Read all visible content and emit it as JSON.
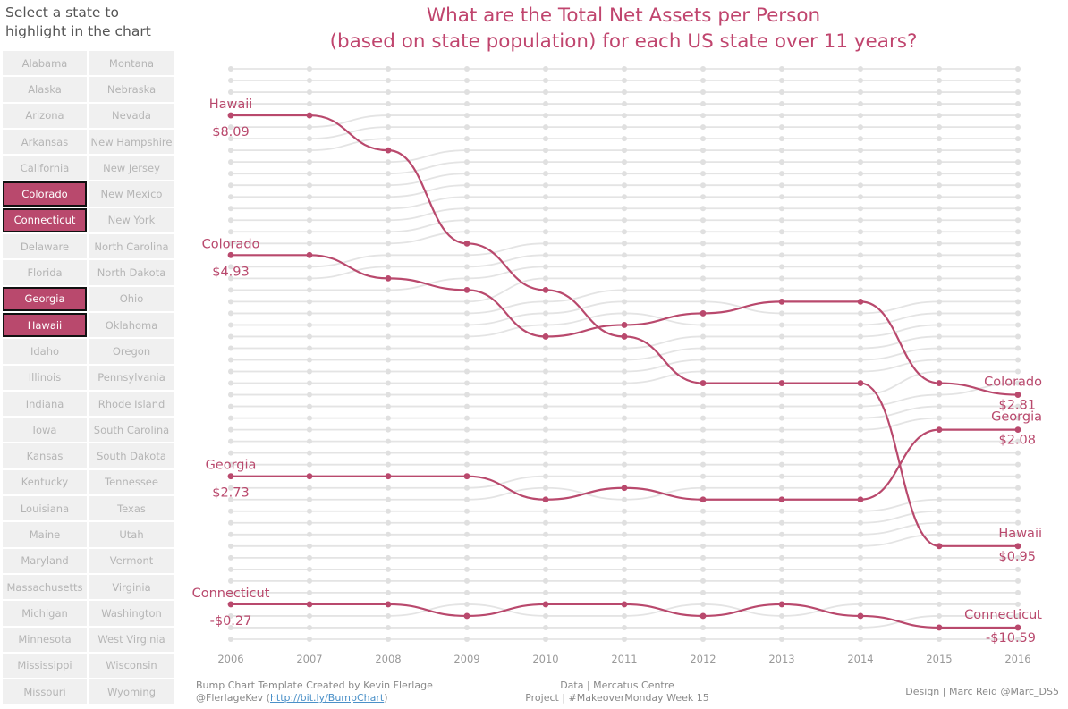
{
  "sidebar": {
    "prompt_line1": "Select a state to",
    "prompt_line2": "highlight in the chart",
    "states": [
      {
        "name": "Alabama",
        "selected": false
      },
      {
        "name": "Montana",
        "selected": false
      },
      {
        "name": "Alaska",
        "selected": false
      },
      {
        "name": "Nebraska",
        "selected": false
      },
      {
        "name": "Arizona",
        "selected": false
      },
      {
        "name": "Nevada",
        "selected": false
      },
      {
        "name": "Arkansas",
        "selected": false
      },
      {
        "name": "New Hampshire",
        "selected": false
      },
      {
        "name": "California",
        "selected": false
      },
      {
        "name": "New Jersey",
        "selected": false
      },
      {
        "name": "Colorado",
        "selected": true
      },
      {
        "name": "New Mexico",
        "selected": false
      },
      {
        "name": "Connecticut",
        "selected": true
      },
      {
        "name": "New York",
        "selected": false
      },
      {
        "name": "Delaware",
        "selected": false
      },
      {
        "name": "North Carolina",
        "selected": false
      },
      {
        "name": "Florida",
        "selected": false
      },
      {
        "name": "North Dakota",
        "selected": false
      },
      {
        "name": "Georgia",
        "selected": true
      },
      {
        "name": "Ohio",
        "selected": false
      },
      {
        "name": "Hawaii",
        "selected": true
      },
      {
        "name": "Oklahoma",
        "selected": false
      },
      {
        "name": "Idaho",
        "selected": false
      },
      {
        "name": "Oregon",
        "selected": false
      },
      {
        "name": "Illinois",
        "selected": false
      },
      {
        "name": "Pennsylvania",
        "selected": false
      },
      {
        "name": "Indiana",
        "selected": false
      },
      {
        "name": "Rhode Island",
        "selected": false
      },
      {
        "name": "Iowa",
        "selected": false
      },
      {
        "name": "South Carolina",
        "selected": false
      },
      {
        "name": "Kansas",
        "selected": false
      },
      {
        "name": "South Dakota",
        "selected": false
      },
      {
        "name": "Kentucky",
        "selected": false
      },
      {
        "name": "Tennessee",
        "selected": false
      },
      {
        "name": "Louisiana",
        "selected": false
      },
      {
        "name": "Texas",
        "selected": false
      },
      {
        "name": "Maine",
        "selected": false
      },
      {
        "name": "Utah",
        "selected": false
      },
      {
        "name": "Maryland",
        "selected": false
      },
      {
        "name": "Vermont",
        "selected": false
      },
      {
        "name": "Massachusetts",
        "selected": false
      },
      {
        "name": "Virginia",
        "selected": false
      },
      {
        "name": "Michigan",
        "selected": false
      },
      {
        "name": "Washington",
        "selected": false
      },
      {
        "name": "Minnesota",
        "selected": false
      },
      {
        "name": "West Virginia",
        "selected": false
      },
      {
        "name": "Mississippi",
        "selected": false
      },
      {
        "name": "Wisconsin",
        "selected": false
      },
      {
        "name": "Missouri",
        "selected": false
      },
      {
        "name": "Wyoming",
        "selected": false
      }
    ]
  },
  "title": {
    "line1": "What are the Total Net Assets per Person",
    "line2": "(based on state population) for each US state over 11 years?"
  },
  "colors": {
    "highlight": "#b9496d",
    "background_lines": "#e4e4e4",
    "title": "#c0456e"
  },
  "chart_data": {
    "type": "bump",
    "x": [
      "2006",
      "2007",
      "2008",
      "2009",
      "2010",
      "2011",
      "2012",
      "2013",
      "2014",
      "2015",
      "2016"
    ],
    "rank_range": [
      1,
      50
    ],
    "series": [
      {
        "name": "Hawaii",
        "ranks": [
          5,
          5,
          8,
          16,
          20,
          24,
          28,
          28,
          28,
          42,
          42
        ],
        "start_value": "$8.09",
        "end_value": "$0.95"
      },
      {
        "name": "Colorado",
        "ranks": [
          17,
          17,
          19,
          20,
          24,
          23,
          22,
          21,
          21,
          28,
          29
        ],
        "start_value": "$4.93",
        "end_value": "$2.81"
      },
      {
        "name": "Georgia",
        "ranks": [
          36,
          36,
          36,
          36,
          38,
          37,
          38,
          38,
          38,
          32,
          32
        ],
        "start_value": "$2.73",
        "end_value": "$2.08"
      },
      {
        "name": "Connecticut",
        "ranks": [
          47,
          47,
          47,
          48,
          47,
          47,
          48,
          47,
          48,
          49,
          49
        ],
        "start_value": "-$0.27",
        "end_value": "-$10.59"
      }
    ]
  },
  "footer": {
    "credit_line1": "Bump Chart Template Created by Kevin Flerlage",
    "credit_handle": "@FlerlageKev (",
    "credit_link": "http://bit.ly/BumpChart",
    "credit_close": ")",
    "data_line1": "Data | Mercatus Centre",
    "data_line2": "Project | #MakeoverMonday Week 15",
    "design": "Design | Marc Reid  @Marc_DS5"
  }
}
